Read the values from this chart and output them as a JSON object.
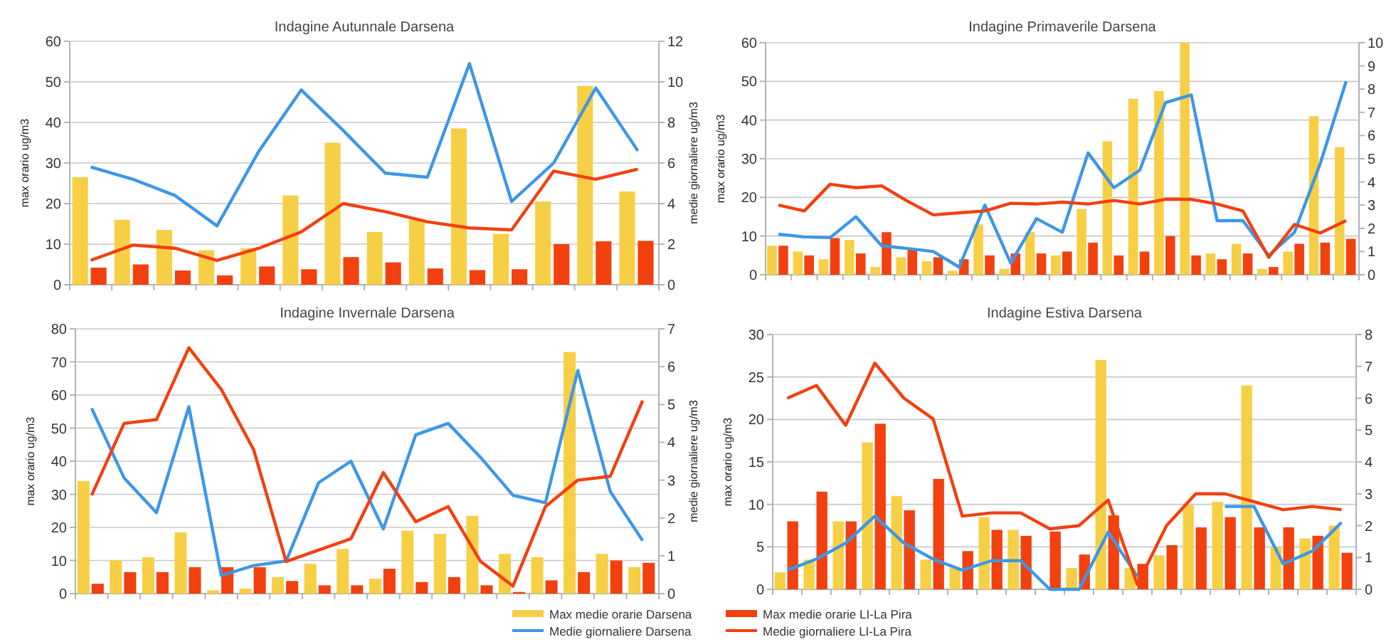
{
  "chart_data": [
    {
      "type": "bar",
      "title": "Indagine Autunnale Darsena",
      "ylabel": "max orario ug/m3",
      "y2label": "medie giornaliere ug/m3",
      "categories": [
        null,
        null,
        null,
        null,
        null,
        null,
        null,
        null,
        null,
        null,
        null,
        null,
        null,
        null
      ],
      "ylim": [
        0,
        60
      ],
      "yticks": [
        0,
        10,
        20,
        30,
        40,
        50,
        60
      ],
      "y2lim": [
        0,
        12
      ],
      "y2ticks": [
        0,
        2,
        4,
        6,
        8,
        10,
        12
      ],
      "grid": "y",
      "series": [
        {
          "color": "#f7cf45",
          "values": [
            26.5,
            16,
            13.5,
            8.5,
            9,
            22,
            35,
            13,
            16,
            38.5,
            12.5,
            20.5,
            49,
            23
          ]
        },
        {
          "color": "#f2400f",
          "values": [
            4.2,
            5,
            3.5,
            2.3,
            4.5,
            3.8,
            6.8,
            5.5,
            4,
            3.6,
            3.8,
            10,
            10.7,
            10.8
          ]
        },
        {
          "type": "line",
          "axis": "y2",
          "color": "#3d97e6",
          "values": [
            5.8,
            5.2,
            4.4,
            2.9,
            6.6,
            9.6,
            7.6,
            5.5,
            5.3,
            10.9,
            4.1,
            6,
            9.7,
            6.6
          ]
        },
        {
          "type": "line",
          "axis": "y2",
          "color": "#f2400f",
          "values": [
            1.2,
            1.95,
            1.8,
            1.2,
            1.8,
            2.6,
            4,
            3.6,
            3.1,
            2.8,
            2.7,
            5.6,
            5.2,
            5.7
          ]
        }
      ]
    },
    {
      "type": "bar",
      "title": "Indagine Primaverile Darsena",
      "ylabel": "max orario ug/m3",
      "categories": [
        null,
        null,
        null,
        null,
        null,
        null,
        null,
        null,
        null,
        null,
        null,
        null,
        null,
        null,
        null,
        null,
        null,
        null,
        null,
        null,
        null,
        null,
        null
      ],
      "ylim": [
        0,
        60
      ],
      "yticks": [
        0,
        10,
        20,
        30,
        40,
        50,
        60
      ],
      "y2lim": [
        0,
        10
      ],
      "y2ticks": [
        0,
        1,
        2,
        3,
        4,
        5,
        6,
        7,
        8,
        9,
        10
      ],
      "grid": "y",
      "series": [
        {
          "color": "#f7cf45",
          "values": [
            7.5,
            6,
            4,
            9,
            2,
            4.5,
            3.5,
            1,
            13,
            1.5,
            11,
            5,
            17,
            34.5,
            45.5,
            47.5,
            60,
            5.5,
            8,
            1.5,
            6,
            41,
            33
          ]
        },
        {
          "color": "#f2400f",
          "values": [
            7.5,
            5,
            9.5,
            5.5,
            11,
            6.5,
            4.5,
            4,
            5,
            5.5,
            5.5,
            6,
            8.3,
            5,
            6,
            10,
            5,
            4,
            5.5,
            2,
            8,
            8.3,
            9.3
          ]
        },
        {
          "type": "line",
          "axis": "y2",
          "color": "#3d97e6",
          "values": [
            1.75,
            1.63,
            1.6,
            2.5,
            1.25,
            1.13,
            1,
            0.33,
            3,
            0.5,
            2.42,
            1.83,
            5.25,
            3.75,
            4.5,
            7.42,
            7.75,
            2.33,
            2.33,
            0.83,
            1.83,
            4.8,
            8.33
          ]
        },
        {
          "type": "line",
          "axis": "y2",
          "color": "#f2400f",
          "values": [
            3,
            2.75,
            3.9,
            3.75,
            3.83,
            3.17,
            2.58,
            2.67,
            2.75,
            3.08,
            3.05,
            3.13,
            3.05,
            3.2,
            3.05,
            3.25,
            3.25,
            3.05,
            2.75,
            0.75,
            2.17,
            1.8,
            2.33
          ]
        }
      ]
    },
    {
      "type": "bar",
      "title": "Indagine Invernale Darsena",
      "ylabel": "max orario ug/m3",
      "y2label": "medie giornaliere ug/m3",
      "categories": [
        null,
        null,
        null,
        null,
        null,
        null,
        null,
        null,
        null,
        null,
        null,
        null,
        null,
        null,
        null,
        null,
        null,
        null
      ],
      "ylim": [
        0,
        80
      ],
      "yticks": [
        0,
        10,
        20,
        30,
        40,
        50,
        60,
        70,
        80
      ],
      "y2lim": [
        0,
        7
      ],
      "y2ticks": [
        0,
        1,
        2,
        3,
        4,
        5,
        6,
        7
      ],
      "grid": "y",
      "legend": "bottom",
      "series": [
        {
          "name": "Max medie orarie Darsena",
          "color": "#f7cf45",
          "values": [
            34,
            10,
            11,
            18.5,
            1,
            1.5,
            5,
            9,
            13.5,
            4.5,
            19,
            18,
            23.5,
            12,
            11,
            73,
            12,
            8
          ]
        },
        {
          "name": "Max medie orarie LI-La Pira",
          "color": "#f2400f",
          "values": [
            3,
            6.5,
            6.5,
            8,
            8,
            8,
            3.8,
            2.5,
            2.5,
            7.5,
            3.5,
            5,
            2.5,
            0.5,
            4,
            6.5,
            10,
            9.3
          ]
        },
        {
          "type": "line",
          "name": "Medie giornaliere Darsena",
          "axis": "y2",
          "color": "#3d97e6",
          "values": [
            4.9,
            3.06,
            2.14,
            4.94,
            0.48,
            0.74,
            0.86,
            2.93,
            3.5,
            1.71,
            4.2,
            4.5,
            3.6,
            2.6,
            2.4,
            5.9,
            2.7,
            1.4
          ]
        },
        {
          "type": "line",
          "name": "Medie giornaliere LI-La Pira",
          "axis": "y2",
          "color": "#f2400f",
          "values": [
            2.6,
            4.5,
            4.6,
            6.5,
            5.4,
            3.8,
            0.85,
            1.15,
            1.45,
            3.2,
            1.9,
            2.3,
            0.85,
            0.2,
            2.3,
            3,
            3.1,
            5.1
          ]
        }
      ]
    },
    {
      "type": "bar",
      "title": "Indagine Estiva Darsena",
      "ylabel": "max orario ug/m3",
      "categories": [
        null,
        null,
        null,
        null,
        null,
        null,
        null,
        null,
        null,
        null,
        null,
        null,
        null,
        null,
        null,
        null,
        null,
        null,
        null,
        null
      ],
      "ylim": [
        0,
        30
      ],
      "yticks": [
        0,
        5,
        10,
        15,
        20,
        25,
        30
      ],
      "y2lim": [
        0,
        8
      ],
      "y2ticks": [
        0,
        1,
        2,
        3,
        4,
        5,
        6,
        7,
        8
      ],
      "grid": "y",
      "series": [
        {
          "color": "#f7cf45",
          "values": [
            2,
            3.5,
            8,
            17.3,
            11,
            3.5,
            2.5,
            8.5,
            7,
            0,
            2.5,
            27,
            2.5,
            4,
            10,
            10.3,
            24,
            5,
            6,
            7.5
          ]
        },
        {
          "color": "#f2400f",
          "values": [
            8,
            11.5,
            8,
            19.5,
            9.3,
            13,
            4.5,
            7,
            6.3,
            6.8,
            4.1,
            8.7,
            3,
            5.2,
            7.3,
            8.5,
            7.3,
            7.3,
            6.3,
            4.3
          ]
        },
        {
          "type": "line",
          "axis": "y2",
          "color": "#3d97e6",
          "values": [
            0.6,
            0.95,
            1.45,
            2.3,
            1.45,
            0.95,
            0.6,
            0.9,
            0.9,
            0,
            0,
            1.8,
            0.4,
            null,
            null,
            2.6,
            2.6,
            0.8,
            1.2,
            2.1
          ]
        },
        {
          "type": "line",
          "axis": "y2",
          "color": "#f2400f",
          "values": [
            6,
            6.4,
            5.15,
            7.1,
            6,
            5.35,
            2.3,
            2.4,
            2.4,
            1.9,
            2,
            2.8,
            0.15,
            2,
            3,
            3,
            2.75,
            2.5,
            2.6,
            2.5
          ]
        }
      ]
    }
  ]
}
